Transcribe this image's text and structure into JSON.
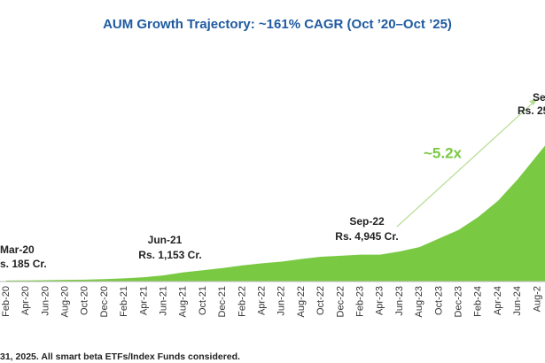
{
  "chart_data": {
    "type": "area",
    "title": "AUM Growth Trajectory: ~161% CAGR (Oct ’20–Oct ’25)",
    "categories": [
      "Feb-20",
      "Apr-20",
      "Jun-20",
      "Aug-20",
      "Oct-20",
      "Dec-20",
      "Feb-21",
      "Apr-21",
      "Jun-21",
      "Aug-21",
      "Oct-21",
      "Dec-21",
      "Feb-22",
      "Apr-22",
      "Jun-22",
      "Aug-22",
      "Oct-22",
      "Dec-22",
      "Feb-23",
      "Apr-23",
      "Jun-23",
      "Aug-23",
      "Oct-23",
      "Dec-23",
      "Feb-24",
      "Apr-24",
      "Jun-24",
      "Aug-2"
    ],
    "values": [
      185,
      200,
      250,
      300,
      350,
      450,
      600,
      800,
      1153,
      1700,
      2100,
      2500,
      3000,
      3400,
      3700,
      4200,
      4600,
      4800,
      5000,
      5000,
      5600,
      6400,
      8000,
      9600,
      12000,
      15000,
      19000,
      23500
    ],
    "color": "#7ac943",
    "ylim": [
      0,
      25000
    ],
    "annotations": [
      {
        "date": "Mar-20",
        "value": "s. 185 Cr."
      },
      {
        "date": "Jun-21",
        "value": "Rs. 1,153 Cr."
      },
      {
        "date": "Sep-22",
        "value": "Rs. 4,945 Cr."
      },
      {
        "date": "Se",
        "value": "Rs. 25"
      }
    ],
    "growth_label": "~5.2x",
    "footnote": "31, 2025. All smart beta ETFs/Index Funds considered."
  }
}
